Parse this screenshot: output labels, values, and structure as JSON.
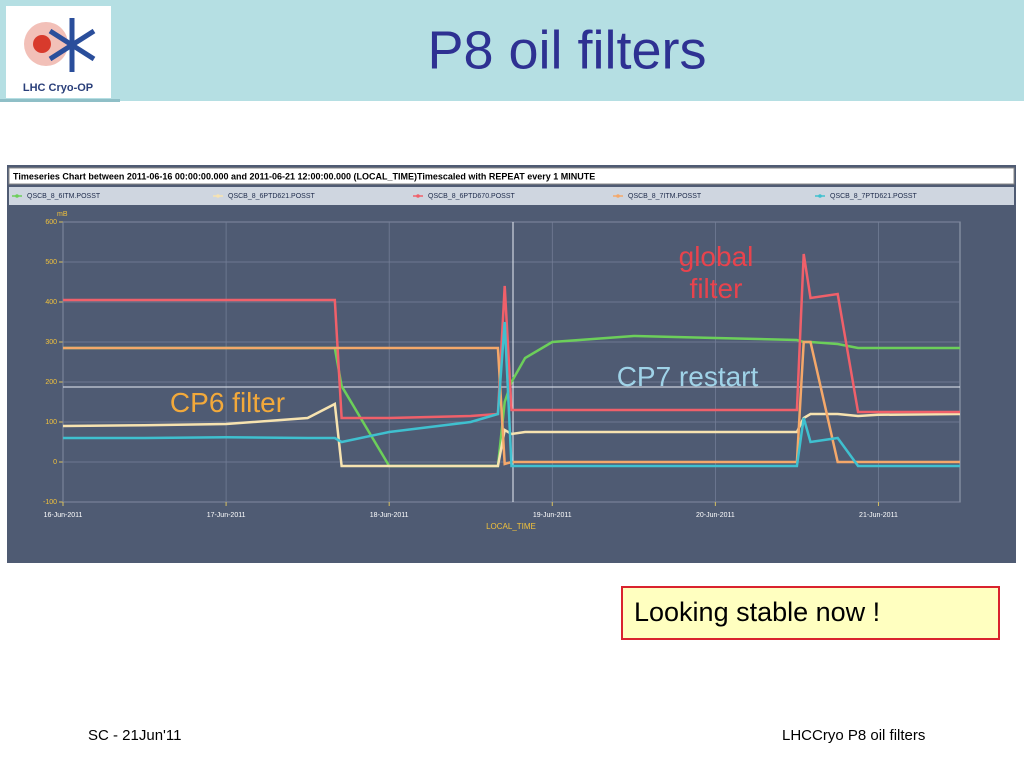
{
  "slide": {
    "title": "P8 oil filters",
    "logo_text": "LHC Cryo-OP",
    "note": "Looking stable now !",
    "footer_left": "SC - 21Jun'11",
    "footer_right": "LHCCryo P8 oil filters"
  },
  "chart_data": {
    "type": "line",
    "title": "Timeseries Chart between 2011-06-16 00:00:00.000 and 2011-06-21 12:00:00.000 (LOCAL_TIME)Timescaled with REPEAT every 1 MINUTE",
    "ylabel": "mB",
    "xlabel": "LOCAL_TIME",
    "x": [
      "2011-06-16 00:00",
      "2011-06-16 12:00",
      "2011-06-17 00:00",
      "2011-06-17 12:00",
      "2011-06-17 16:00",
      "2011-06-17 17:00",
      "2011-06-18 00:00",
      "2011-06-18 12:00",
      "2011-06-18 16:00",
      "2011-06-18 17:00",
      "2011-06-18 18:00",
      "2011-06-18 20:00",
      "2011-06-19 00:00",
      "2011-06-19 12:00",
      "2011-06-20 00:00",
      "2011-06-20 12:00",
      "2011-06-20 13:00",
      "2011-06-20 14:00",
      "2011-06-20 18:00",
      "2011-06-20 21:00",
      "2011-06-21 00:00",
      "2011-06-21 12:00"
    ],
    "series": [
      {
        "name": "QSCB_8_6ITM.POSST",
        "color": "#6ccf5a",
        "values": [
          285,
          285,
          285,
          285,
          285,
          190,
          -10,
          -10,
          -10,
          150,
          200,
          260,
          300,
          315,
          310,
          305,
          300,
          300,
          295,
          285,
          285,
          285
        ]
      },
      {
        "name": "QSCB_8_6PTD621.POSST",
        "color": "#f7e3b0",
        "values": [
          90,
          92,
          95,
          110,
          145,
          -10,
          -10,
          -10,
          -10,
          80,
          70,
          75,
          75,
          75,
          75,
          75,
          110,
          120,
          120,
          115,
          118,
          120
        ]
      },
      {
        "name": "QSCB_8_6PTD670.POSST",
        "color": "#f0606a",
        "values": [
          405,
          405,
          405,
          405,
          405,
          110,
          110,
          115,
          120,
          440,
          130,
          130,
          130,
          130,
          130,
          130,
          520,
          410,
          420,
          125,
          125,
          125
        ]
      },
      {
        "name": "QSCB_8_7ITM.POSST",
        "color": "#f4a86a",
        "values": [
          285,
          285,
          285,
          285,
          285,
          285,
          285,
          285,
          285,
          -5,
          0,
          0,
          0,
          0,
          0,
          0,
          300,
          300,
          0,
          0,
          0,
          0
        ]
      },
      {
        "name": "QSCB_8_7PTD621.POSST",
        "color": "#3fc0cf",
        "values": [
          60,
          60,
          62,
          60,
          60,
          50,
          75,
          100,
          120,
          350,
          -10,
          -10,
          -10,
          -10,
          -10,
          -10,
          110,
          50,
          60,
          -10,
          -10,
          -10
        ]
      }
    ],
    "xlim": [
      "2011-06-16 00:00",
      "2011-06-21 12:00"
    ],
    "xticks": [
      {
        "value": "2011-06-16 00:00",
        "label": "16-Jun-2011"
      },
      {
        "value": "2011-06-17 00:00",
        "label": "17-Jun-2011"
      },
      {
        "value": "2011-06-18 00:00",
        "label": "18-Jun-2011"
      },
      {
        "value": "2011-06-19 00:00",
        "label": "19-Jun-2011"
      },
      {
        "value": "2011-06-20 00:00",
        "label": "20-Jun-2011"
      },
      {
        "value": "2011-06-21 00:00",
        "label": "21-Jun-2011"
      }
    ],
    "ylim": [
      -100,
      600
    ],
    "yticks": [
      -100,
      0,
      100,
      200,
      300,
      400,
      500,
      600
    ],
    "grid": true,
    "annotations": [
      {
        "text": "global filter",
        "color": "#e8434d"
      },
      {
        "text": "CP7 restart",
        "color": "#9fd3e8"
      },
      {
        "text": "CP6 filter",
        "color": "#f2a93b"
      }
    ]
  }
}
